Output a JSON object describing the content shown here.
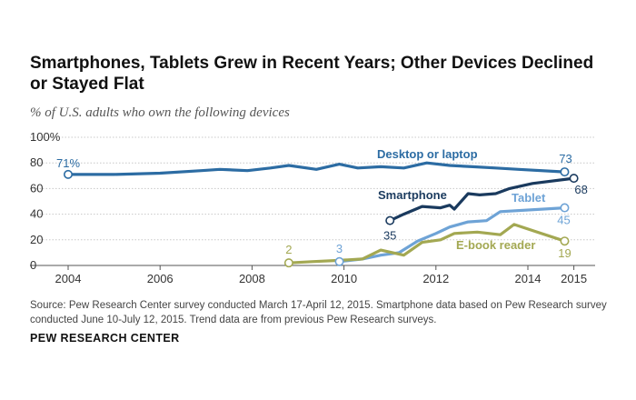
{
  "header": {
    "title": "Smartphones, Tablets Grew in Recent Years; Other Devices Declined or Stayed Flat",
    "subtitle": "% of U.S. adults who own the following devices"
  },
  "footer": {
    "source": "Source:  Pew Research Center survey conducted March 17-April 12, 2015. Smartphone data based on Pew Research survey conducted June 10-July 12, 2015. Trend data are from previous Pew Research surveys.",
    "brand": "PEW RESEARCH CENTER"
  },
  "chart_data": {
    "type": "line",
    "title": "Smartphones, Tablets Grew in Recent Years; Other Devices Declined or Stayed Flat",
    "subtitle": "% of U.S. adults who own the following devices",
    "xlabel": "",
    "ylabel": "",
    "xlim": [
      2003.6,
      2015.4
    ],
    "ylim": [
      0,
      100
    ],
    "x_ticks": [
      2004,
      2006,
      2008,
      2010,
      2012,
      2014,
      2015
    ],
    "y_ticks": [
      0,
      20,
      40,
      60,
      80,
      100
    ],
    "y_tick_labels": [
      "0",
      "20",
      "40",
      "60",
      "80",
      "100%"
    ],
    "grid": true,
    "series": [
      {
        "name": "Desktop or laptop",
        "color": "#2c6ca3",
        "x": [
          2004,
          2005,
          2006,
          2006.9,
          2007.3,
          2007.9,
          2008.4,
          2008.8,
          2009.4,
          2009.9,
          2010.3,
          2010.8,
          2011.3,
          2011.8,
          2012.3,
          2012.8,
          2013.3,
          2013.8,
          2014.8
        ],
        "values": [
          71,
          71,
          72,
          74,
          75,
          74,
          76,
          78,
          75,
          79,
          76,
          77,
          76,
          80,
          78,
          77,
          76,
          75,
          73
        ],
        "start_label": "71%",
        "end_label": "73"
      },
      {
        "name": "Smartphone",
        "color": "#1a3a5e",
        "x": [
          2011.0,
          2011.3,
          2011.7,
          2012.1,
          2012.3,
          2012.4,
          2012.7,
          2012.95,
          2013.3,
          2013.6,
          2014.1,
          2015.0
        ],
        "values": [
          35,
          40,
          46,
          45,
          47,
          44,
          56,
          55,
          56,
          60,
          64,
          68
        ],
        "start_label": "35",
        "end_label": "68"
      },
      {
        "name": "Tablet",
        "color": "#6ea3d6",
        "x": [
          2009.9,
          2010.4,
          2010.8,
          2011.2,
          2011.6,
          2012.0,
          2012.3,
          2012.7,
          2013.1,
          2013.4,
          2014.8
        ],
        "values": [
          3,
          5,
          8,
          10,
          19,
          25,
          30,
          34,
          35,
          42,
          45
        ],
        "start_label": "3",
        "end_label": "45"
      },
      {
        "name": "E-book reader",
        "color": "#a3a852",
        "x": [
          2008.8,
          2009.3,
          2009.9,
          2010.4,
          2010.8,
          2011.3,
          2011.7,
          2012.1,
          2012.4,
          2012.9,
          2013.4,
          2013.7,
          2014.8
        ],
        "values": [
          2,
          3,
          4,
          5,
          12,
          8,
          18,
          20,
          25,
          26,
          24,
          32,
          19
        ],
        "start_label": "2",
        "end_label": "19"
      }
    ],
    "annotations": [
      "Desktop or laptop",
      "Smartphone",
      "Tablet",
      "E-book reader"
    ]
  }
}
